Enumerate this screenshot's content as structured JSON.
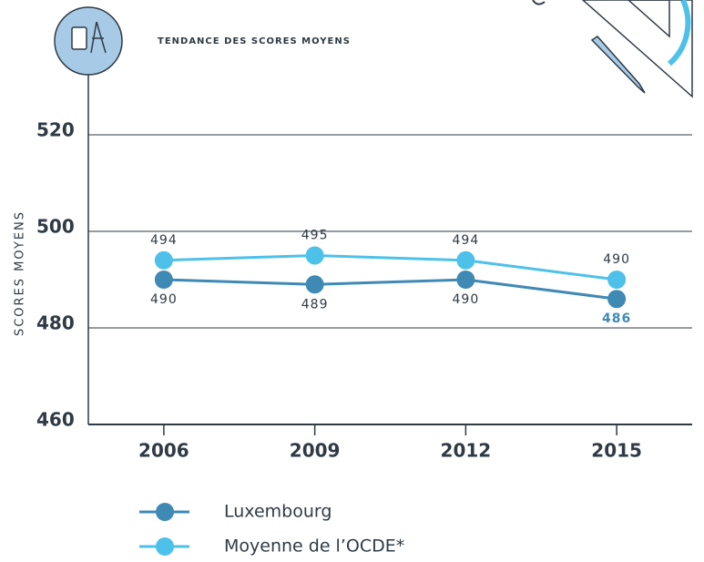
{
  "chart_data": {
    "type": "line",
    "title": "TENDANCE DES SCORES MOYENS",
    "y_label": "SCORES MOYENS",
    "categories": [
      "2006",
      "2009",
      "2012",
      "2015"
    ],
    "series": [
      {
        "name": "Luxembourg",
        "color": "#3f89b5",
        "values": [
          490,
          489,
          490,
          486
        ]
      },
      {
        "name": "Moyenne de l’OCDE*",
        "color": "#4dc1ea",
        "values": [
          494,
          495,
          494,
          490
        ]
      }
    ],
    "ylim": [
      460,
      520
    ],
    "yticks": [
      460,
      480,
      500,
      520
    ],
    "grid": true
  }
}
